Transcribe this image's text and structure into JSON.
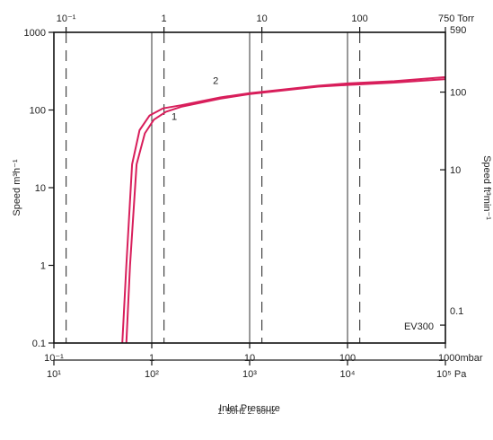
{
  "chart_data": {
    "type": "line",
    "scale": "log-log",
    "model_label": "EV300",
    "x_title": "Inlet Pressure",
    "y_left_title": "Speed m³h⁻¹",
    "y_right_title": "Speed ft³min⁻¹",
    "x_range_mbar": [
      0.1,
      1000
    ],
    "y_range_m3h": [
      0.1,
      1000
    ],
    "bottom_axis_ticks_mbar": [
      {
        "value": 0.1,
        "label": "10⁻¹"
      },
      {
        "value": 1,
        "label": "1"
      },
      {
        "value": 10,
        "label": "10"
      },
      {
        "value": 100,
        "label": "100"
      },
      {
        "value": 1000,
        "label": "1000mbar"
      }
    ],
    "pa_axis_ticks": [
      {
        "value": 0.1,
        "label": "10¹"
      },
      {
        "value": 1,
        "label": "10²"
      },
      {
        "value": 10,
        "label": "10³"
      },
      {
        "value": 100,
        "label": "10⁴"
      },
      {
        "value": 1000,
        "label": "10⁵ Pa"
      }
    ],
    "torr_axis_ticks": [
      {
        "value": 0.1333,
        "label": "10⁻¹"
      },
      {
        "value": 1.333,
        "label": "1"
      },
      {
        "value": 13.33,
        "label": "10"
      },
      {
        "value": 133.3,
        "label": "100"
      },
      {
        "value": 1000,
        "label": "750 Torr"
      }
    ],
    "left_axis_ticks": [
      {
        "value": 0.1,
        "label": "0.1"
      },
      {
        "value": 1,
        "label": "1"
      },
      {
        "value": 10,
        "label": "10"
      },
      {
        "value": 100,
        "label": "100"
      },
      {
        "value": 1000,
        "label": "1000"
      }
    ],
    "right_axis_ticks": [
      {
        "value": 0.17,
        "label": "0.1"
      },
      {
        "value": 17,
        "label": "10"
      },
      {
        "value": 170,
        "label": "100"
      },
      {
        "value": 1000,
        "label": "590"
      }
    ],
    "series": [
      {
        "label": "1",
        "color": "#d81e5b",
        "points": [
          [
            0.55,
            0.1
          ],
          [
            0.6,
            1
          ],
          [
            0.7,
            20
          ],
          [
            0.85,
            50
          ],
          [
            1.05,
            75
          ],
          [
            1.4,
            95
          ],
          [
            2,
            110
          ],
          [
            5,
            140
          ],
          [
            10,
            160
          ],
          [
            50,
            200
          ],
          [
            100,
            210
          ],
          [
            300,
            225
          ],
          [
            1000,
            250
          ]
        ]
      },
      {
        "label": "2",
        "color": "#d81e5b",
        "points": [
          [
            0.5,
            0.1
          ],
          [
            0.55,
            1
          ],
          [
            0.63,
            20
          ],
          [
            0.75,
            55
          ],
          [
            0.95,
            85
          ],
          [
            1.3,
            105
          ],
          [
            2,
            115
          ],
          [
            5,
            145
          ],
          [
            10,
            165
          ],
          [
            50,
            205
          ],
          [
            100,
            220
          ],
          [
            300,
            235
          ],
          [
            1000,
            265
          ]
        ]
      }
    ],
    "series_annotations": [
      {
        "label": "1",
        "x": 1.7,
        "y": 75
      },
      {
        "label": "2",
        "x": 4.5,
        "y": 215
      }
    ],
    "caption": "1. 50Hz 2. 60Hz"
  }
}
